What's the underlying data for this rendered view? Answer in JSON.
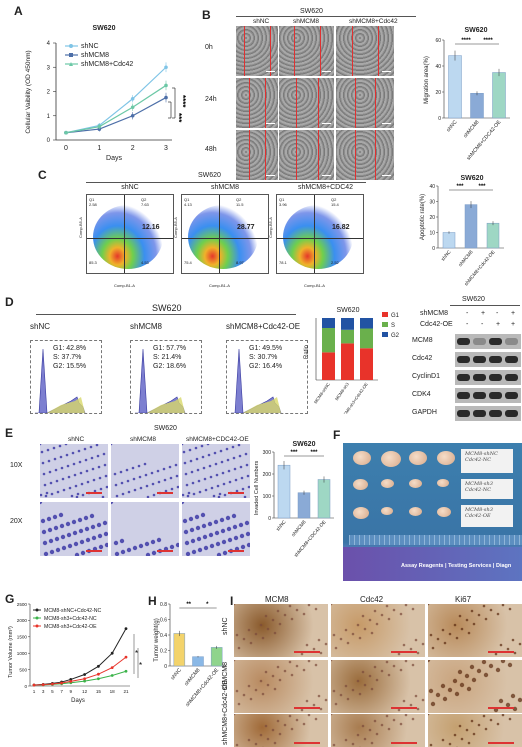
{
  "panels": {
    "A": {
      "label": "A",
      "chart_data": {
        "type": "line",
        "title": "SW620",
        "xlabel": "Days",
        "ylabel": "Cellular Vaibility (OD 450nm)",
        "x": [
          0,
          1,
          2,
          3
        ],
        "xlim": [
          0,
          3
        ],
        "ylim": [
          0,
          4
        ],
        "yticks": [
          0,
          1,
          2,
          3,
          4
        ],
        "series": [
          {
            "name": "shNC",
            "values": [
              0.3,
              0.6,
              1.7,
              3.0
            ],
            "color": "#7fc4e6"
          },
          {
            "name": "shMCM8",
            "values": [
              0.3,
              0.45,
              1.0,
              1.75
            ],
            "color": "#4d6fa8"
          },
          {
            "name": "shMCM8+Cdc42",
            "values": [
              0.3,
              0.55,
              1.35,
              2.25
            ],
            "color": "#6cc8a6"
          }
        ],
        "annotations": [
          "***",
          "****"
        ]
      }
    },
    "B": {
      "label": "B",
      "header": "SW620",
      "cols": [
        "shNC",
        "shMCM8",
        "shMCM8+Cdc42"
      ],
      "rows": [
        "0h",
        "24h",
        "48h"
      ],
      "chart_data": {
        "type": "bar",
        "title": "SW620",
        "ylabel": "Migration area(%)",
        "categories": [
          "shNC",
          "shMCM8",
          "shMCM8+CDC42-OE"
        ],
        "values": [
          48,
          19,
          35
        ],
        "ylim": [
          0,
          60
        ],
        "yticks": [
          0,
          20,
          40,
          60
        ],
        "annotations": [
          "****",
          "****"
        ],
        "colors": [
          "#bcd8f0",
          "#8aaad6",
          "#9ed7c4"
        ]
      }
    },
    "C": {
      "label": "C",
      "header": "SW620",
      "plots": [
        {
          "title": "shNC",
          "value": "12.16",
          "q1": "2.58",
          "q2": "7.63",
          "q3": "4.53",
          "q4": "85.3"
        },
        {
          "title": "shMCM8",
          "value": "28.77",
          "q1": "4.13",
          "q2": "11.5",
          "q3": "8.97",
          "q4": "75.4"
        },
        {
          "title": "shMCM8+CDC42",
          "value": "16.82",
          "q1": "3.96",
          "q2": "15.4",
          "q3": "2.52",
          "q4": "78.1"
        }
      ],
      "xaxis": "Comp-B1-A",
      "yaxis": "Comp-B5-A",
      "chart_data": {
        "type": "bar",
        "title": "SW620",
        "ylabel": "Apoptotic rate(%)",
        "categories": [
          "shNC",
          "shMCM8",
          "shMCM8+Cdc42-OE"
        ],
        "values": [
          10,
          28,
          16
        ],
        "ylim": [
          0,
          40
        ],
        "yticks": [
          0,
          10,
          20,
          30,
          40
        ],
        "annotations": [
          "***",
          "***"
        ],
        "colors": [
          "#bcd8f0",
          "#8aaad6",
          "#9ed7c4"
        ]
      }
    },
    "D": {
      "label": "D",
      "header": "SW620",
      "histos": [
        {
          "title": "shNC",
          "g1": "G1: 42.8%",
          "s": "S: 37.7%",
          "g2": "G2: 15.5%"
        },
        {
          "title": "shMCM8",
          "g1": "G1: 57.7%",
          "s": "S: 21.4%",
          "g2": "G2: 18.6%"
        },
        {
          "title": "shMCM8+Cdc42-OE",
          "g1": "G1: 49.5%",
          "s": "S: 30.7%",
          "g2": "G2: 16.4%"
        }
      ],
      "chart_data": {
        "type": "bar",
        "title": "SW620",
        "ylabel": "Ratio",
        "categories": [
          "MCM8-shNC",
          "MCM8-sh3",
          "MCM8-sh3+Cdc42-OE"
        ],
        "series": [
          {
            "name": "G1",
            "values": [
              42.8,
              57.7,
              49.5
            ],
            "color": "#e8332a"
          },
          {
            "name": "S",
            "values": [
              37.7,
              21.4,
              30.7
            ],
            "color": "#6ab04c"
          },
          {
            "name": "G2",
            "values": [
              15.5,
              18.6,
              16.4
            ],
            "color": "#2253a3"
          }
        ],
        "ylim": [
          0,
          100
        ]
      },
      "blot": {
        "header": "SW620",
        "rows": [
          {
            "name": "shMCM8",
            "signs": [
              "-",
              "+",
              "-",
              "+"
            ]
          },
          {
            "name": "Cdc42-OE",
            "signs": [
              "-",
              "-",
              "+",
              "+"
            ]
          }
        ],
        "proteins": [
          "MCM8",
          "Cdc42",
          "CyclinD1",
          "CDK4",
          "GAPDH"
        ]
      }
    },
    "E": {
      "label": "E",
      "header": "SW620",
      "cols": [
        "shNC",
        "shMCM8",
        "shMCM8+CDC42-OE"
      ],
      "rows": [
        "10X",
        "20X"
      ],
      "chart_data": {
        "type": "bar",
        "title": "SW620",
        "ylabel": "Invaded Cell Numbers",
        "categories": [
          "shNC",
          "shMCM8",
          "shMCM8+CDC42-OE"
        ],
        "values": [
          240,
          115,
          175
        ],
        "ylim": [
          0,
          300
        ],
        "yticks": [
          0,
          100,
          200,
          300
        ],
        "annotations": [
          "***",
          "***"
        ],
        "colors": [
          "#bcd8f0",
          "#8aaad6",
          "#9ed7c4"
        ]
      }
    },
    "F": {
      "label": "F",
      "notes": [
        "MCM8-shNC\nCdc42-NC",
        "MCM8-sh3\nCdc42-NC",
        "MCM8-sh3\nCdc42-OE"
      ],
      "banner": "Assay Reagents | Testing Services | Diagn"
    },
    "G": {
      "label": "G",
      "chart_data": {
        "type": "line",
        "xlabel": "Days",
        "ylabel": "Tumor Volume (mm³)",
        "x": [
          1,
          3,
          5,
          7,
          9,
          12,
          15,
          18,
          21
        ],
        "xlim": [
          1,
          21
        ],
        "ylim": [
          0,
          2500
        ],
        "yticks": [
          0,
          500,
          1000,
          1500,
          2000,
          2500
        ],
        "series": [
          {
            "name": "MCM8-shNC+Cdc42-NC",
            "values": [
              30,
              50,
              80,
              120,
              200,
              350,
              600,
              1000,
              1750
            ],
            "color": "#222222"
          },
          {
            "name": "MCM8-sh3+Cdc42-NC",
            "values": [
              25,
              35,
              50,
              70,
              100,
              150,
              220,
              320,
              450
            ],
            "color": "#3bb34a"
          },
          {
            "name": "MCM8-sh3+Cdc42-OE",
            "values": [
              28,
              40,
              60,
              90,
              140,
              220,
              360,
              560,
              880
            ],
            "color": "#e8332a"
          }
        ],
        "annotations": [
          "*",
          "*"
        ]
      }
    },
    "H": {
      "label": "H",
      "chart_data": {
        "type": "bar",
        "ylabel": "Tumor weight(g)",
        "categories": [
          "shNC",
          "shMCM8",
          "shMCM8+Cdc42-OE"
        ],
        "values": [
          0.42,
          0.12,
          0.24
        ],
        "ylim": [
          0,
          0.8
        ],
        "yticks": [
          0.0,
          0.2,
          0.4,
          0.6,
          0.8
        ],
        "annotations": [
          "**",
          "*"
        ],
        "colors": [
          "#f3d36b",
          "#8ab8e6",
          "#8fd48c"
        ]
      }
    },
    "I": {
      "label": "I",
      "cols": [
        "MCM8",
        "Cdc42",
        "Ki67"
      ],
      "rows": [
        "shNC",
        "shMCM8",
        "shMCM8+Cdc42-OE"
      ]
    }
  }
}
